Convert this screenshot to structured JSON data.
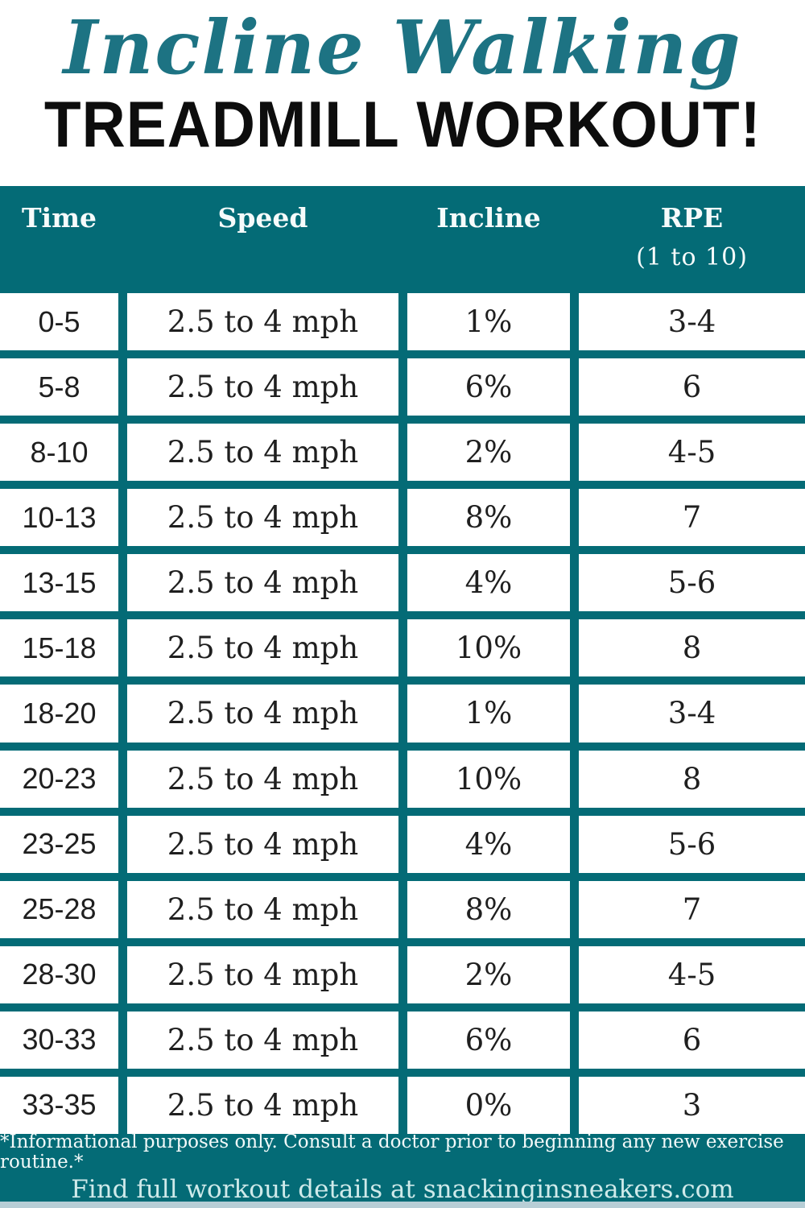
{
  "title": {
    "line1": "Incline Walking",
    "line2": "TREADMILL WORKOUT!"
  },
  "colors": {
    "teal_band": "#046b76",
    "title_teal": "#1d7383",
    "title_black": "#0d0d0d",
    "cell_background": "#ffffff",
    "cell_text": "#1f1f1f",
    "footer_link_text": "#cfeaea",
    "bottom_strip": "#b7ced6"
  },
  "table": {
    "headers": {
      "time": "Time",
      "speed": "Speed",
      "incline": "Incline",
      "rpe": "RPE",
      "rpe_sub": "(1 to 10)"
    },
    "rows": [
      {
        "time": "0-5",
        "speed": "2.5 to 4 mph",
        "incline": "1%",
        "rpe": "3-4"
      },
      {
        "time": "5-8",
        "speed": "2.5 to 4 mph",
        "incline": "6%",
        "rpe": "6"
      },
      {
        "time": "8-10",
        "speed": "2.5 to 4 mph",
        "incline": "2%",
        "rpe": "4-5"
      },
      {
        "time": "10-13",
        "speed": "2.5 to 4 mph",
        "incline": "8%",
        "rpe": "7"
      },
      {
        "time": "13-15",
        "speed": "2.5 to 4 mph",
        "incline": "4%",
        "rpe": "5-6"
      },
      {
        "time": "15-18",
        "speed": "2.5 to 4 mph",
        "incline": "10%",
        "rpe": "8"
      },
      {
        "time": "18-20",
        "speed": "2.5 to 4 mph",
        "incline": "1%",
        "rpe": "3-4"
      },
      {
        "time": "20-23",
        "speed": "2.5 to 4 mph",
        "incline": "10%",
        "rpe": "8"
      },
      {
        "time": "23-25",
        "speed": "2.5 to 4 mph",
        "incline": "4%",
        "rpe": "5-6"
      },
      {
        "time": "25-28",
        "speed": "2.5 to 4 mph",
        "incline": "8%",
        "rpe": "7"
      },
      {
        "time": "28-30",
        "speed": "2.5 to 4 mph",
        "incline": "2%",
        "rpe": "4-5"
      },
      {
        "time": "30-33",
        "speed": "2.5 to 4 mph",
        "incline": "6%",
        "rpe": "6"
      },
      {
        "time": "33-35",
        "speed": "2.5 to 4 mph",
        "incline": "0%",
        "rpe": "3"
      }
    ]
  },
  "footer": {
    "disclaimer": "*Informational purposes only. Consult a doctor prior to beginning any new exercise routine.*",
    "details": "Find full workout details at snackinginsneakers.com"
  }
}
